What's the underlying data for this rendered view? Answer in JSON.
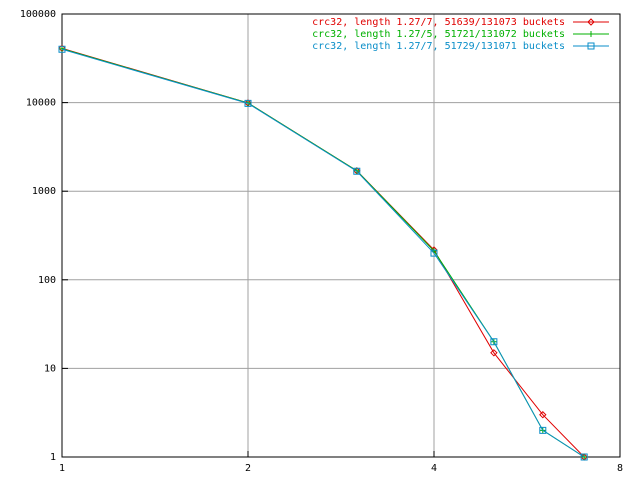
{
  "chart_data": {
    "type": "line",
    "x": [
      1,
      2,
      3,
      4,
      5,
      6,
      7
    ],
    "series": [
      {
        "name": "crc32, length 1.27/7, 51639/131073 buckets",
        "color": "#e00000",
        "marker": "diamond",
        "values": [
          41000,
          9900,
          1700,
          217,
          15,
          3,
          1
        ]
      },
      {
        "name": "crc32, length 1.27/5, 51721/131072 buckets",
        "color": "#00b000",
        "marker": "plus",
        "values": [
          40500,
          9900,
          1700,
          212,
          20,
          2,
          1
        ]
      },
      {
        "name": "crc32, length 1.27/7, 51729/131071 buckets",
        "color": "#0a8ec8",
        "marker": "square",
        "values": [
          40000,
          9800,
          1680,
          200,
          20,
          2,
          1
        ]
      }
    ],
    "xscale": "log",
    "yscale": "log",
    "xlim": [
      1,
      8
    ],
    "xticks": [
      1,
      2,
      4,
      8
    ],
    "ylim": [
      1,
      100000
    ],
    "yticks": [
      1,
      10,
      100,
      1000,
      10000,
      100000
    ],
    "grid": true,
    "legend": "top-right"
  }
}
